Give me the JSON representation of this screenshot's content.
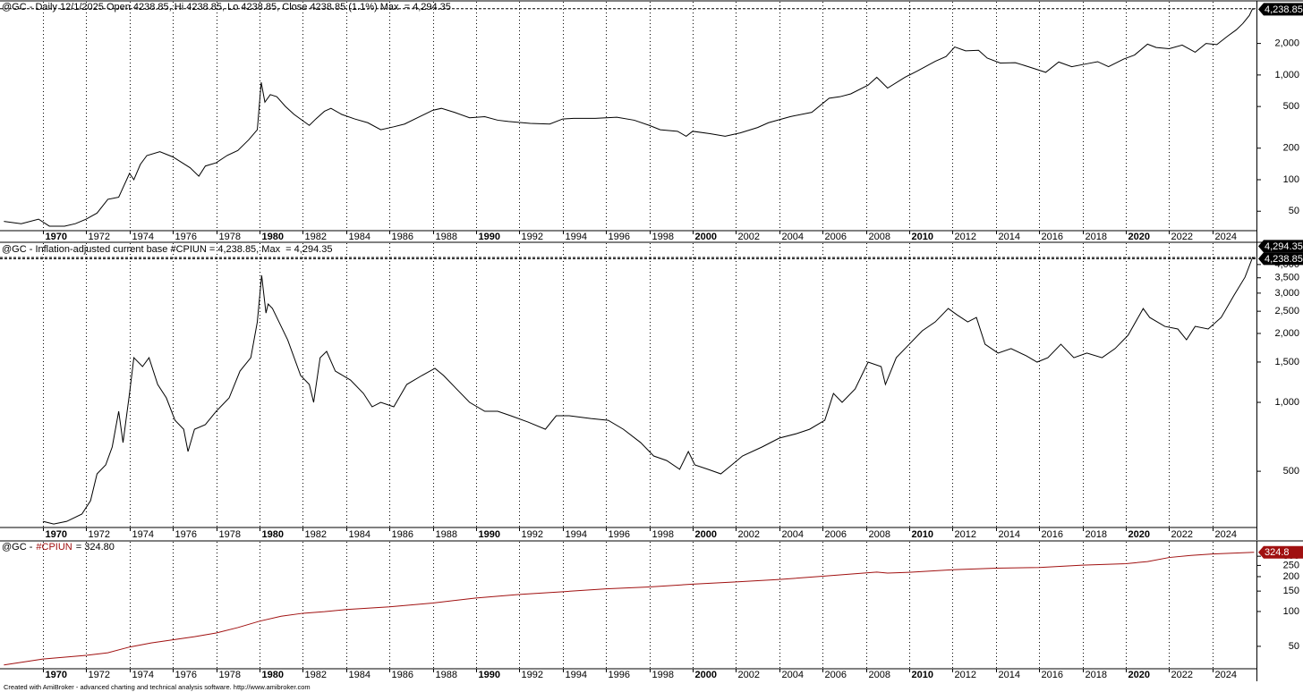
{
  "chart_data": [
    {
      "type": "line",
      "title": "@GC - Daily 12/1/2025 Open 4238.85, Hi 4238.85, Lo 4238.85, Close 4238.85 (1.1%) Max  = 4,294.35",
      "log_scale": true,
      "grid": true,
      "color": "#000000",
      "xlim": [
        1968.02,
        2026.03
      ],
      "xticks": [
        1970,
        1972,
        1974,
        1976,
        1978,
        1980,
        1982,
        1984,
        1986,
        1988,
        1990,
        1992,
        1994,
        1996,
        1998,
        2000,
        2002,
        2004,
        2006,
        2008,
        2010,
        2012,
        2014,
        2016,
        2018,
        2020,
        2022,
        2024
      ],
      "ylim": [
        32.6,
        5000
      ],
      "yticks": [
        50,
        100,
        200,
        500,
        {
          "value": 1000,
          "label": "1,000"
        },
        {
          "value": 2000,
          "label": "2,000"
        }
      ],
      "max": 4294.35,
      "last_value_label": "4,238.85",
      "x": [
        1968.2,
        1969.0,
        1969.8,
        1970.3,
        1971.0,
        1971.5,
        1972.0,
        1972.5,
        1973.0,
        1973.5,
        1974.0,
        1974.2,
        1974.5,
        1974.8,
        1975.4,
        1976.0,
        1976.8,
        1977.2,
        1977.5,
        1978.0,
        1978.5,
        1979.0,
        1979.5,
        1979.9,
        1980.08,
        1980.25,
        1980.5,
        1980.8,
        1981.2,
        1981.6,
        1982.3,
        1982.6,
        1983.0,
        1983.3,
        1983.8,
        1984.4,
        1985.0,
        1985.6,
        1986.2,
        1986.7,
        1987.4,
        1988.0,
        1988.4,
        1989.0,
        1989.7,
        1990.4,
        1991.0,
        1991.5,
        1992.5,
        1993.4,
        1994.0,
        1994.5,
        1995.5,
        1996.5,
        1997.3,
        1998.0,
        1998.5,
        1999.3,
        1999.7,
        2000.0,
        2000.8,
        2001.5,
        2002.2,
        2003.0,
        2003.5,
        2004.5,
        2005.5,
        2006.3,
        2006.8,
        2007.3,
        2008.1,
        2008.5,
        2009.0,
        2009.8,
        2010.4,
        2011.2,
        2011.7,
        2012.1,
        2012.6,
        2013.2,
        2013.6,
        2014.2,
        2014.9,
        2015.5,
        2016.3,
        2016.9,
        2017.5,
        2018.2,
        2018.7,
        2019.2,
        2019.9,
        2020.4,
        2021.0,
        2021.4,
        2022.0,
        2022.6,
        2023.2,
        2023.7,
        2024.2,
        2024.7,
        2025.1,
        2025.4,
        2025.7,
        2025.85,
        2025.92
      ],
      "values": [
        40,
        38,
        42,
        36,
        36,
        38,
        42,
        48,
        65,
        68,
        115,
        100,
        140,
        170,
        185,
        165,
        130,
        108,
        135,
        145,
        170,
        190,
        240,
        300,
        850,
        550,
        650,
        620,
        500,
        420,
        330,
        380,
        450,
        480,
        420,
        380,
        350,
        300,
        320,
        340,
        400,
        460,
        480,
        440,
        390,
        400,
        370,
        360,
        345,
        340,
        380,
        385,
        385,
        395,
        370,
        330,
        300,
        290,
        260,
        290,
        275,
        260,
        280,
        315,
        350,
        400,
        440,
        600,
        620,
        660,
        800,
        950,
        750,
        950,
        1100,
        1350,
        1500,
        1850,
        1700,
        1720,
        1450,
        1300,
        1310,
        1200,
        1060,
        1330,
        1200,
        1280,
        1340,
        1200,
        1420,
        1550,
        1970,
        1830,
        1780,
        1930,
        1650,
        2000,
        1950,
        2350,
        2700,
        3100,
        3700,
        4294.35,
        4238.85
      ]
    },
    {
      "type": "line",
      "title": "@GC - Inflation-adjusted current base #CPIUN = 4,238.85, Max  = 4,294.35",
      "log_scale": true,
      "grid": true,
      "color": "#000000",
      "xlim": [
        1968.02,
        2026.03
      ],
      "xticks": [
        1970,
        1972,
        1974,
        1976,
        1978,
        1980,
        1982,
        1984,
        1986,
        1988,
        1990,
        1992,
        1994,
        1996,
        1998,
        2000,
        2002,
        2004,
        2006,
        2008,
        2010,
        2012,
        2014,
        2016,
        2018,
        2020,
        2022,
        2024
      ],
      "ylim": [
        284,
        4958
      ],
      "yticks": [
        500,
        {
          "value": 1000,
          "label": "1,000"
        },
        {
          "value": 1500,
          "label": "1,500"
        },
        {
          "value": 2000,
          "label": "2,000"
        },
        {
          "value": 2500,
          "label": "2,500"
        },
        {
          "value": 3000,
          "label": "3,000"
        },
        {
          "value": 3500,
          "label": "3,500"
        },
        {
          "value": 4000,
          "label": "4,000"
        }
      ],
      "max": 4294.35,
      "max_label": "4,294.35",
      "last_value_label": "4,238.85",
      "x": [
        1970.0,
        1970.5,
        1971.1,
        1971.8,
        1972.2,
        1972.5,
        1972.9,
        1973.2,
        1973.5,
        1973.7,
        1974.0,
        1974.2,
        1974.6,
        1974.9,
        1975.3,
        1975.7,
        1976.1,
        1976.5,
        1976.7,
        1977.0,
        1977.5,
        1978.0,
        1978.6,
        1979.1,
        1979.6,
        1979.9,
        1980.1,
        1980.3,
        1980.4,
        1980.6,
        1980.9,
        1981.3,
        1981.9,
        1982.3,
        1982.5,
        1982.8,
        1983.1,
        1983.5,
        1984.2,
        1984.8,
        1985.2,
        1985.6,
        1986.2,
        1986.8,
        1987.5,
        1988.1,
        1988.5,
        1989.1,
        1989.7,
        1990.4,
        1991.0,
        1991.6,
        1992.4,
        1993.2,
        1993.7,
        1994.3,
        1995.3,
        1996.1,
        1996.8,
        1997.6,
        1998.2,
        1998.8,
        1999.4,
        1999.8,
        2000.1,
        2000.7,
        2001.3,
        2001.7,
        2002.3,
        2003.2,
        2004.0,
        2004.8,
        2005.4,
        2006.1,
        2006.5,
        2006.9,
        2007.5,
        2008.1,
        2008.7,
        2008.9,
        2009.4,
        2010.0,
        2010.6,
        2011.2,
        2011.8,
        2012.2,
        2012.7,
        2013.1,
        2013.5,
        2014.1,
        2014.7,
        2015.4,
        2015.9,
        2016.4,
        2017.0,
        2017.6,
        2018.2,
        2018.9,
        2019.5,
        2020.1,
        2020.8,
        2021.1,
        2021.8,
        2022.4,
        2022.8,
        2023.2,
        2023.8,
        2024.4,
        2025.0,
        2025.5,
        2025.85,
        2025.92
      ],
      "values": [
        302,
        294,
        302,
        325,
        372,
        487,
        533,
        638,
        914,
        667,
        1094,
        1567,
        1433,
        1567,
        1197,
        1046,
        835,
        763,
        610,
        763,
        799,
        914,
        1046,
        1370,
        1567,
        2246,
        3590,
        2455,
        2690,
        2570,
        2246,
        1877,
        1310,
        1197,
        1000,
        1567,
        1670,
        1370,
        1252,
        1094,
        956,
        1000,
        956,
        1197,
        1310,
        1408,
        1310,
        1144,
        1000,
        914,
        914,
        874,
        820,
        763,
        874,
        874,
        850,
        835,
        763,
        667,
        583,
        557,
        510,
        610,
        533,
        510,
        487,
        523,
        583,
        638,
        698,
        730,
        763,
        835,
        1094,
        1000,
        1144,
        1499,
        1433,
        1197,
        1567,
        1794,
        2054,
        2246,
        2570,
        2414,
        2246,
        2349,
        1794,
        1641,
        1717,
        1597,
        1499,
        1567,
        1794,
        1567,
        1641,
        1567,
        1717,
        1962,
        2570,
        2349,
        2147,
        2091,
        1877,
        2147,
        2091,
        2349,
        2942,
        3520,
        4294.35,
        4238.85
      ]
    },
    {
      "type": "line",
      "title_prefix": "@GC -",
      "title_series": "#CPIUN",
      "title_suffix": "= 324.80",
      "log_scale": true,
      "grid": true,
      "color": "#a01010",
      "xlim": [
        1968.02,
        2026.03
      ],
      "xticks": [
        1970,
        1972,
        1974,
        1976,
        1978,
        1980,
        1982,
        1984,
        1986,
        1988,
        1990,
        1992,
        1994,
        1996,
        1998,
        2000,
        2002,
        2004,
        2006,
        2008,
        2010,
        2012,
        2014,
        2016,
        2018,
        2020,
        2022,
        2024
      ],
      "ylim": [
        32,
        400
      ],
      "yticks": [
        50,
        100,
        150,
        200,
        250,
        300
      ],
      "last_value_label": "324.8",
      "x": [
        1968.2,
        1970.0,
        1972.0,
        1973.0,
        1974.0,
        1975.0,
        1976.0,
        1977.0,
        1978.0,
        1979.0,
        1980.0,
        1981.0,
        1982.0,
        1983.0,
        1984.0,
        1986.0,
        1988.0,
        1990.0,
        1992.0,
        1994.0,
        1996.0,
        1998.0,
        2000.0,
        2002.0,
        2004.0,
        2006.0,
        2008.5,
        2009.0,
        2010.0,
        2012.0,
        2014.0,
        2016.0,
        2018.0,
        2020.0,
        2021.0,
        2022.0,
        2023.0,
        2024.0,
        2025.92
      ],
      "values": [
        34.5,
        38.8,
        41.8,
        44.0,
        49.3,
        53.5,
        56.9,
        60.6,
        65.2,
        72.6,
        82.4,
        90.9,
        96.5,
        99.6,
        103.9,
        109.6,
        118.3,
        130.7,
        140.3,
        148.2,
        156.9,
        163.0,
        172.2,
        179.9,
        188.9,
        201.6,
        219.0,
        214.5,
        218.1,
        229.6,
        236.7,
        240.0,
        251.1,
        258.8,
        270.0,
        292.7,
        304.7,
        313.7,
        324.8
      ]
    }
  ],
  "footer": "Created with AmiBroker - advanced charting and technical analysis software. http://www.amibroker.com"
}
